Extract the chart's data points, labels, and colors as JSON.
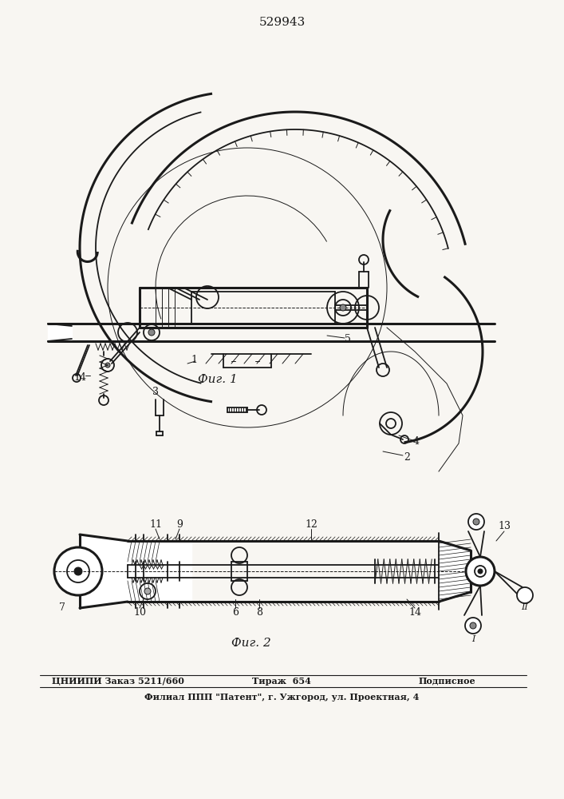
{
  "title": "529943",
  "fig1_label": "Фиг. 1",
  "fig2_label": "Фиг. 2",
  "bottom_line1": "ЦНИИПИ Заказ 5211/660",
  "bottom_center": "Тираж  654",
  "bottom_right": "Подписное",
  "bottom_line2": "Филиал ППП \"Патент\", г. Ужгород, ул. Проектная, 4",
  "bg_color": "#f0ede8",
  "line_color": "#1a1a1a"
}
